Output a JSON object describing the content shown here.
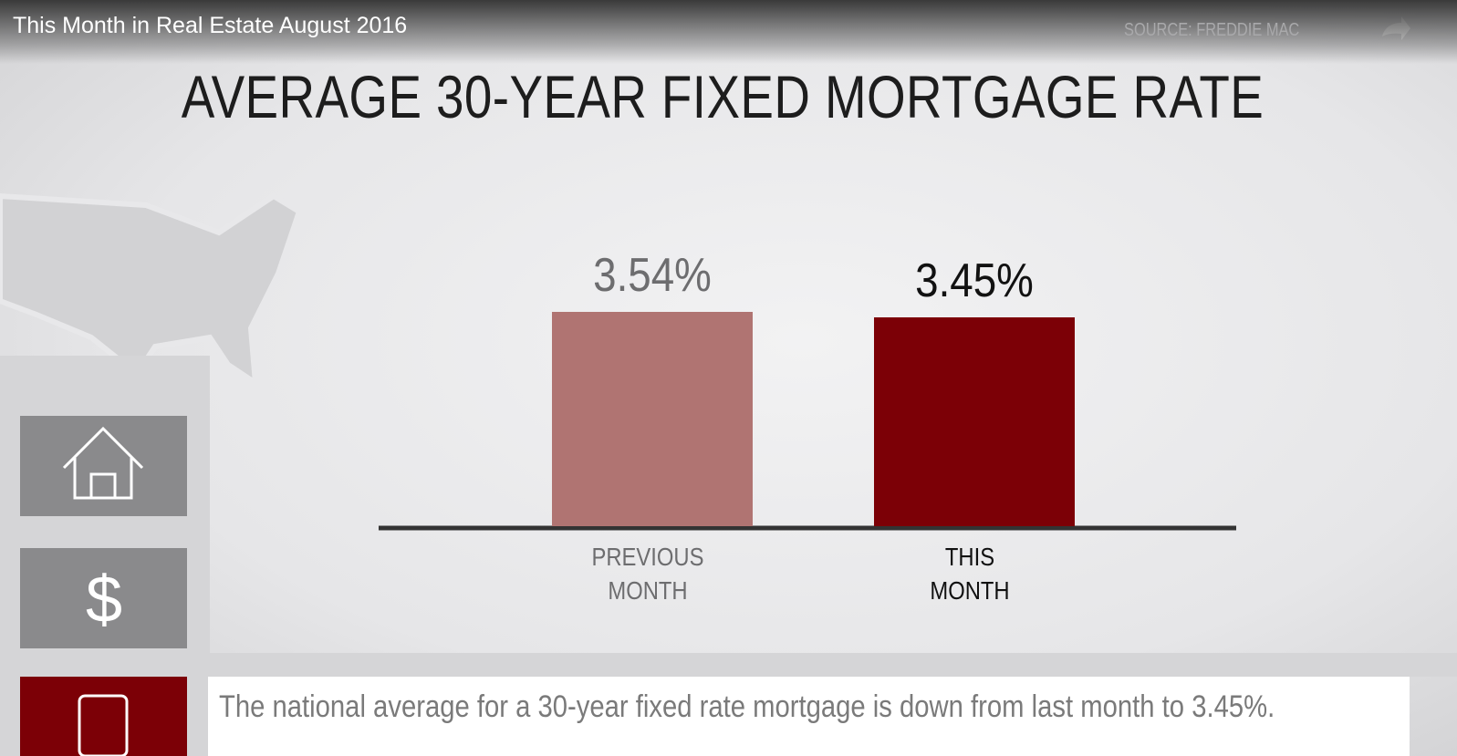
{
  "video_title": "This Month in Real Estate August 2016",
  "source": "SOURCE: FREDDIE MAC",
  "chart_data": {
    "type": "bar",
    "title": "AVERAGE 30-YEAR FIXED MORTGAGE RATE",
    "categories": [
      "PREVIOUS MONTH",
      "THIS MONTH"
    ],
    "values": [
      3.54,
      3.45
    ],
    "value_labels": [
      "3.54%",
      "3.45%"
    ],
    "colors": [
      "#b07472",
      "#7c0006"
    ],
    "ylim": [
      0,
      4
    ]
  },
  "caption": "The national average for a 30-year fixed rate mortgage is down from last month to 3.45%."
}
